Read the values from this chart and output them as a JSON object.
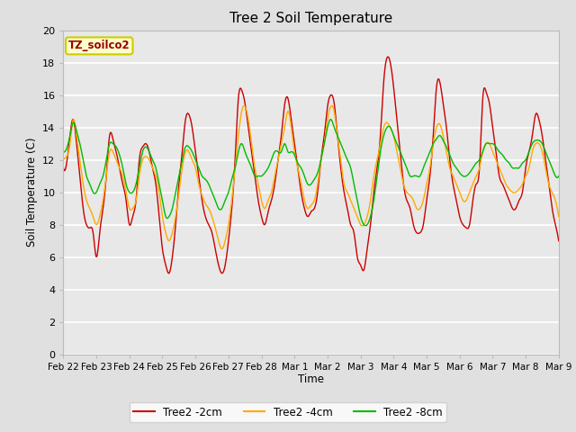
{
  "title": "Tree 2 Soil Temperature",
  "ylabel": "Soil Temperature (C)",
  "xlabel": "Time",
  "annotation_text": "TZ_soilco2",
  "annotation_bg": "#ffffcc",
  "annotation_border": "#cccc00",
  "annotation_color": "#990000",
  "ylim": [
    0,
    20
  ],
  "yticks": [
    0,
    2,
    4,
    6,
    8,
    10,
    12,
    14,
    16,
    18,
    20
  ],
  "xtick_labels": [
    "Feb 22",
    "Feb 23",
    "Feb 24",
    "Feb 25",
    "Feb 26",
    "Feb 27",
    "Feb 28",
    "Mar 1",
    "Mar 2",
    "Mar 3",
    "Mar 4",
    "Mar 5",
    "Mar 6",
    "Mar 7",
    "Mar 8",
    "Mar 9"
  ],
  "bg_color": "#e0e0e0",
  "plot_bg": "#e8e8e8",
  "grid_color": "#ffffff",
  "line_colors": [
    "#cc0000",
    "#ffaa00",
    "#00bb00"
  ],
  "line_labels": [
    "Tree2 -2cm",
    "Tree2 -4cm",
    "Tree2 -8cm"
  ],
  "line_width": 1.0
}
